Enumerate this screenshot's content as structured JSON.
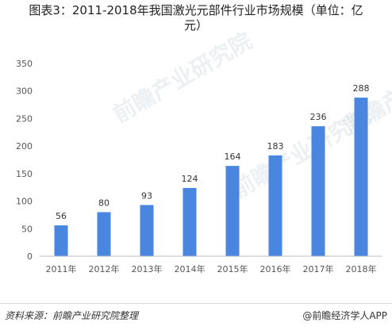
{
  "title": {
    "line1": "图表3：2011-2018年我国激光元部件行业市场规模（单位：亿",
    "line2": "元）"
  },
  "footer": {
    "source": "资料来源：前瞻产业研究院整理",
    "brand": "@前瞻经济学人APP"
  },
  "watermark": {
    "text": "前瞻产业研究院"
  },
  "chart_data": {
    "type": "bar",
    "categories": [
      "2011年",
      "2012年",
      "2013年",
      "2014年",
      "2015年",
      "2016年",
      "2017年",
      "2018年"
    ],
    "values": [
      56,
      80,
      93,
      124,
      164,
      183,
      236,
      288
    ],
    "yticks": [
      0,
      50,
      100,
      150,
      200,
      250,
      300,
      350
    ],
    "ylim": [
      0,
      350
    ],
    "bar_color": "#4a86e0",
    "grid": false,
    "data_labels": true
  }
}
